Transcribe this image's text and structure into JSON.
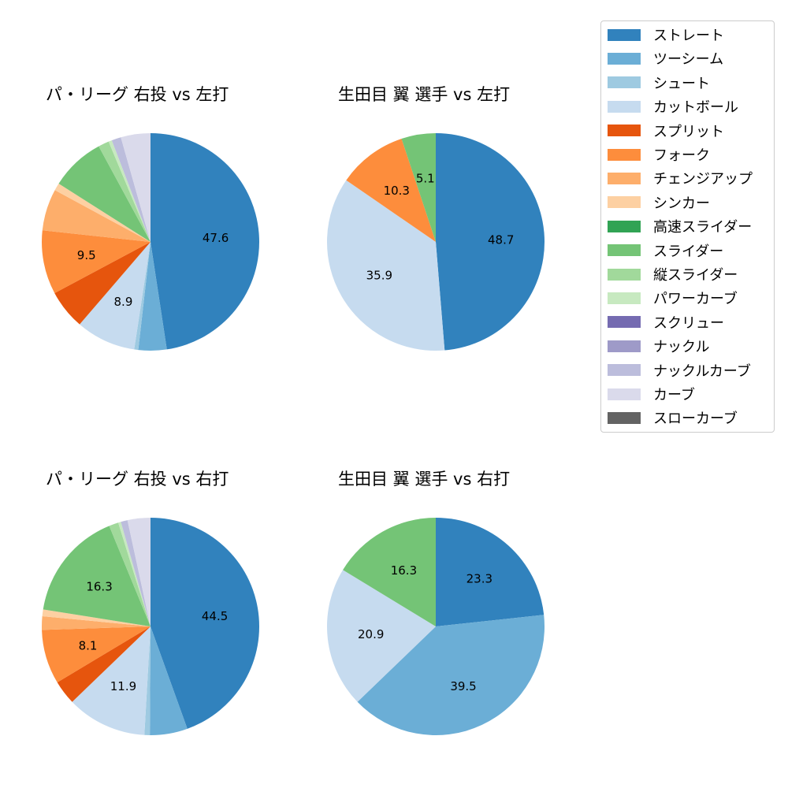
{
  "chart_data": [
    {
      "type": "pie",
      "title": "パ・リーグ 右投 vs 左打",
      "categories": [
        "ストレート",
        "ツーシーム",
        "シュート",
        "カットボール",
        "スプリット",
        "フォーク",
        "チェンジアップ",
        "シンカー",
        "スライダー",
        "縦スライダー",
        "パワーカーブ",
        "ナックルカーブ",
        "カーブ"
      ],
      "values": [
        47.6,
        4.2,
        0.6,
        8.9,
        5.9,
        9.5,
        6.2,
        1.1,
        8.1,
        1.6,
        0.5,
        1.4,
        4.4
      ],
      "labels_shown": {
        "ストレート": "47.6",
        "カットボール": "8.9",
        "フォーク": "9.5"
      }
    },
    {
      "type": "pie",
      "title": "生田目 翼 選手 vs 左打",
      "categories": [
        "ストレート",
        "カットボール",
        "フォーク",
        "スライダー"
      ],
      "values": [
        48.7,
        35.9,
        10.3,
        5.1
      ],
      "labels_shown": {
        "ストレート": "48.7",
        "カットボール": "35.9",
        "フォーク": "10.3",
        "スライダー": "5.1"
      }
    },
    {
      "type": "pie",
      "title": "パ・リーグ 右投 vs 右打",
      "categories": [
        "ストレート",
        "ツーシーム",
        "シュート",
        "カットボール",
        "スプリット",
        "フォーク",
        "チェンジアップ",
        "シンカー",
        "スライダー",
        "縦スライダー",
        "パワーカーブ",
        "ナックルカーブ",
        "カーブ"
      ],
      "values": [
        44.5,
        5.6,
        0.8,
        11.9,
        3.6,
        8.1,
        2.0,
        1.0,
        16.3,
        1.4,
        0.4,
        1.0,
        3.4
      ],
      "labels_shown": {
        "ストレート": "44.5",
        "カットボール": "11.9",
        "フォーク": "8.1",
        "スライダー": "16.3"
      }
    },
    {
      "type": "pie",
      "title": "生田目 翼 選手 vs 右打",
      "categories": [
        "ストレート",
        "ツーシーム",
        "カットボール",
        "スライダー"
      ],
      "values": [
        23.3,
        39.5,
        20.9,
        16.3
      ],
      "labels_shown": {
        "ストレート": "23.3",
        "ツーシーム": "39.5",
        "カットボール": "20.9",
        "スライダー": "16.3"
      }
    }
  ],
  "titles": [
    "パ・リーグ 右投 vs 左打",
    "生田目 翼 選手 vs 左打",
    "パ・リーグ 右投 vs 右打",
    "生田目 翼 選手 vs 右打"
  ],
  "legend": [
    {
      "label": "ストレート",
      "color": "#3182bd"
    },
    {
      "label": "ツーシーム",
      "color": "#6baed6"
    },
    {
      "label": "シュート",
      "color": "#9ecae1"
    },
    {
      "label": "カットボール",
      "color": "#c6dbef"
    },
    {
      "label": "スプリット",
      "color": "#e6550d"
    },
    {
      "label": "フォーク",
      "color": "#fd8d3c"
    },
    {
      "label": "チェンジアップ",
      "color": "#fdae6b"
    },
    {
      "label": "シンカー",
      "color": "#fdd0a2"
    },
    {
      "label": "高速スライダー",
      "color": "#31a354"
    },
    {
      "label": "スライダー",
      "color": "#74c476"
    },
    {
      "label": "縦スライダー",
      "color": "#a1d99b"
    },
    {
      "label": "パワーカーブ",
      "color": "#c7e9c0"
    },
    {
      "label": "スクリュー",
      "color": "#756bb1"
    },
    {
      "label": "ナックル",
      "color": "#9e9ac8"
    },
    {
      "label": "ナックルカーブ",
      "color": "#bcbddc"
    },
    {
      "label": "カーブ",
      "color": "#dadaeb"
    },
    {
      "label": "スローカーブ",
      "color": "#636363"
    }
  ]
}
